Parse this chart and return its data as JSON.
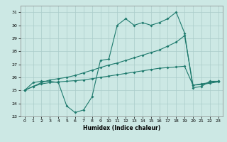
{
  "xlabel": "Humidex (Indice chaleur)",
  "background_color": "#cce8e4",
  "grid_color": "#aaccca",
  "line_color": "#1e7a6d",
  "xlim": [
    -0.5,
    23.5
  ],
  "ylim": [
    23,
    31.5
  ],
  "yticks": [
    23,
    24,
    25,
    26,
    27,
    28,
    29,
    30,
    31
  ],
  "xticks": [
    0,
    1,
    2,
    3,
    4,
    5,
    6,
    7,
    8,
    9,
    10,
    11,
    12,
    13,
    14,
    15,
    16,
    17,
    18,
    19,
    20,
    21,
    22,
    23
  ],
  "line1_x": [
    0,
    1,
    2,
    3,
    4,
    5,
    6,
    7,
    8,
    9,
    10,
    11,
    12,
    13,
    14,
    15,
    16,
    17,
    18,
    19,
    20,
    21,
    22,
    23
  ],
  "line1_y": [
    25.0,
    25.6,
    25.7,
    25.7,
    25.6,
    23.8,
    23.3,
    23.5,
    24.5,
    27.3,
    27.4,
    30.0,
    30.5,
    30.0,
    30.2,
    30.0,
    30.2,
    30.5,
    31.0,
    29.4,
    25.2,
    25.3,
    25.7,
    25.7
  ],
  "line2_x": [
    0,
    1,
    2,
    3,
    4,
    5,
    6,
    7,
    8,
    9,
    10,
    11,
    12,
    13,
    14,
    15,
    16,
    17,
    18,
    19,
    20,
    21,
    22,
    23
  ],
  "line2_y": [
    25.0,
    25.3,
    25.6,
    25.8,
    25.9,
    26.0,
    26.15,
    26.35,
    26.55,
    26.75,
    26.95,
    27.1,
    27.3,
    27.5,
    27.7,
    27.9,
    28.1,
    28.4,
    28.7,
    29.2,
    25.4,
    25.5,
    25.6,
    25.7
  ],
  "line3_x": [
    0,
    1,
    2,
    3,
    4,
    5,
    6,
    7,
    8,
    9,
    10,
    11,
    12,
    13,
    14,
    15,
    16,
    17,
    18,
    19,
    20,
    21,
    22,
    23
  ],
  "line3_y": [
    25.0,
    25.3,
    25.5,
    25.6,
    25.65,
    25.7,
    25.75,
    25.8,
    25.9,
    26.0,
    26.1,
    26.2,
    26.3,
    26.4,
    26.5,
    26.6,
    26.7,
    26.75,
    26.8,
    26.85,
    25.4,
    25.45,
    25.55,
    25.65
  ]
}
